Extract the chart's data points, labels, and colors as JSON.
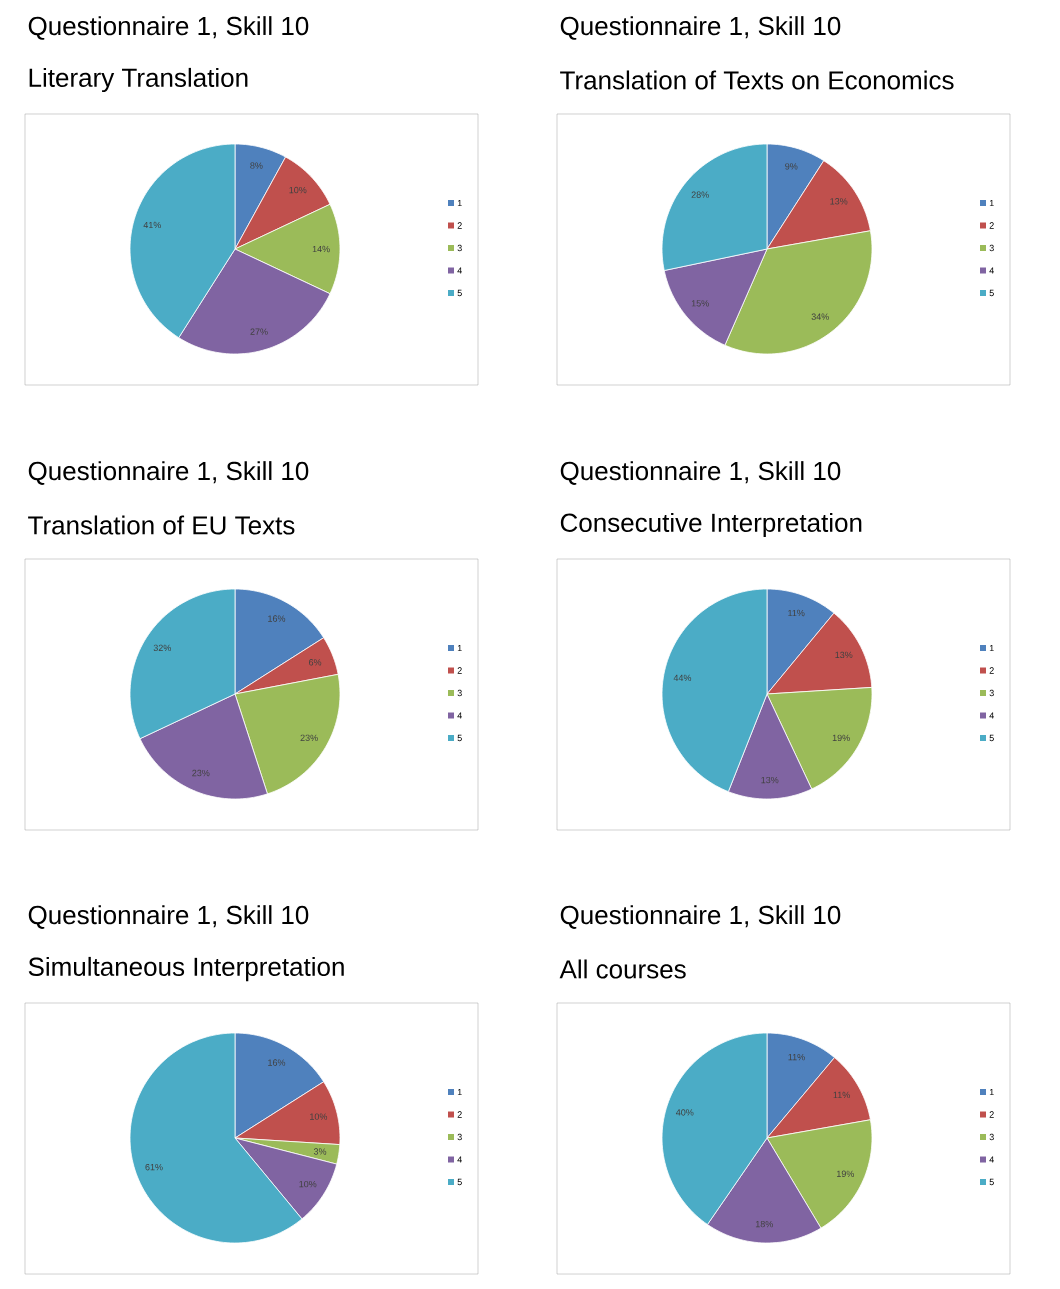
{
  "chart_data": [
    {
      "type": "pie",
      "title": "Questionnaire 1, Skill 10",
      "subtitle": "Literary Translation",
      "categories": [
        "1",
        "2",
        "3",
        "4",
        "5"
      ],
      "values": [
        8,
        10,
        14,
        27,
        41
      ],
      "value_labels": [
        "8%",
        "10%",
        "14%",
        "27%",
        "41%"
      ],
      "colors": [
        "#4f81bd",
        "#c0504d",
        "#9bbb59",
        "#8064a2",
        "#4bacc6"
      ],
      "legend": "right"
    },
    {
      "type": "pie",
      "title": "Questionnaire 1, Skill 10",
      "subtitle": "Translation of Texts on Economics",
      "categories": [
        "1",
        "2",
        "3",
        "4",
        "5"
      ],
      "values": [
        9,
        13,
        34,
        15,
        28
      ],
      "value_labels": [
        "9%",
        "13%",
        "34%",
        "15%",
        "28%"
      ],
      "colors": [
        "#4f81bd",
        "#c0504d",
        "#9bbb59",
        "#8064a2",
        "#4bacc6"
      ],
      "legend": "right"
    },
    {
      "type": "pie",
      "title": "Questionnaire 1, Skill 10",
      "subtitle": "Translation of EU Texts",
      "categories": [
        "1",
        "2",
        "3",
        "4",
        "5"
      ],
      "values": [
        16,
        6,
        23,
        23,
        32
      ],
      "value_labels": [
        "16%",
        "6%",
        "23%",
        "23%",
        "32%"
      ],
      "colors": [
        "#4f81bd",
        "#c0504d",
        "#9bbb59",
        "#8064a2",
        "#4bacc6"
      ],
      "legend": "right"
    },
    {
      "type": "pie",
      "title": "Questionnaire 1, Skill 10",
      "subtitle": "Consecutive Interpretation",
      "categories": [
        "1",
        "2",
        "3",
        "4",
        "5"
      ],
      "values": [
        11,
        13,
        19,
        13,
        44
      ],
      "value_labels": [
        "11%",
        "13%",
        "19%",
        "13%",
        "44%"
      ],
      "colors": [
        "#4f81bd",
        "#c0504d",
        "#9bbb59",
        "#8064a2",
        "#4bacc6"
      ],
      "legend": "right"
    },
    {
      "type": "pie",
      "title": "Questionnaire 1, Skill 10",
      "subtitle": "Simultaneous Interpretation",
      "categories": [
        "1",
        "2",
        "3",
        "4",
        "5"
      ],
      "values": [
        16,
        10,
        3,
        10,
        61
      ],
      "value_labels": [
        "16%",
        "10%",
        "3%",
        "10%",
        "61%"
      ],
      "colors": [
        "#4f81bd",
        "#c0504d",
        "#9bbb59",
        "#8064a2",
        "#4bacc6"
      ],
      "legend": "right"
    },
    {
      "type": "pie",
      "title": "Questionnaire 1, Skill 10",
      "subtitle": "All courses",
      "categories": [
        "1",
        "2",
        "3",
        "4",
        "5"
      ],
      "values": [
        11,
        11,
        19,
        18,
        40
      ],
      "value_labels": [
        "11%",
        "11%",
        "19%",
        "18%",
        "40%"
      ],
      "colors": [
        "#4f81bd",
        "#c0504d",
        "#9bbb59",
        "#8064a2",
        "#4bacc6"
      ],
      "legend": "right"
    }
  ]
}
